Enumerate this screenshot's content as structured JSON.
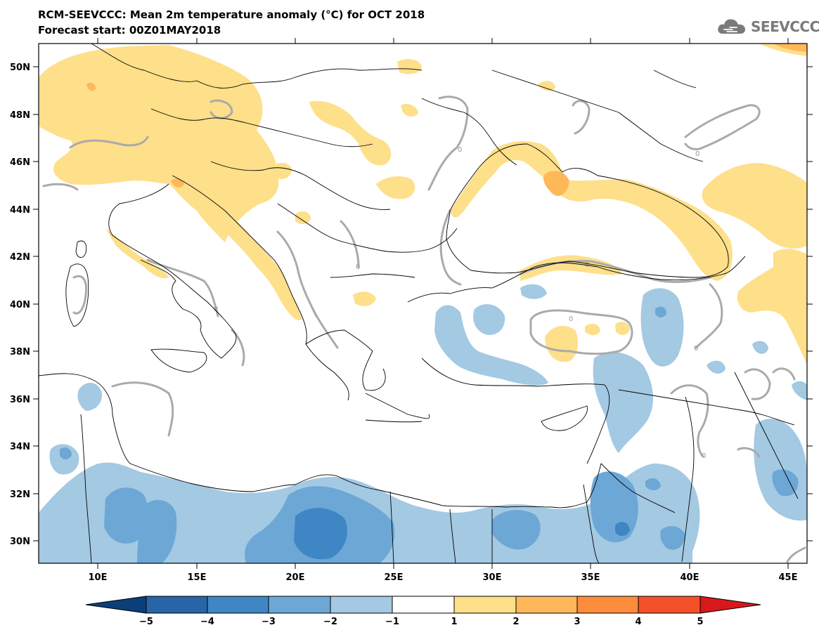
{
  "title": "RCM-SEEVCCC: Mean 2m temperature anomaly (°C) for OCT 2018",
  "subtitle": "Forecast start: 00Z01MAY2018",
  "logo_text": "SEEVCCC",
  "map": {
    "lon_range": [
      7,
      46
    ],
    "lat_range": [
      29,
      51
    ],
    "lat_ticks": [
      "30N",
      "32N",
      "34N",
      "36N",
      "38N",
      "40N",
      "42N",
      "44N",
      "46N",
      "48N",
      "50N"
    ],
    "lon_ticks": [
      "10E",
      "15E",
      "20E",
      "25E",
      "30E",
      "35E",
      "40E",
      "45E"
    ],
    "contour_label": "0",
    "contour_color": "#aaaaaa",
    "border_color": "#000000"
  },
  "colorbar": {
    "tick_labels": [
      "−5",
      "−4",
      "−3",
      "−2",
      "−1",
      "1",
      "2",
      "3",
      "4",
      "5"
    ],
    "colors": [
      "#0b3f7a",
      "#2765a8",
      "#3f86c4",
      "#6ca7d6",
      "#a3c9e3",
      "#ffffff",
      "#fedf8a",
      "#feb85a",
      "#fd8c3c",
      "#f4512a",
      "#d7191c"
    ]
  }
}
